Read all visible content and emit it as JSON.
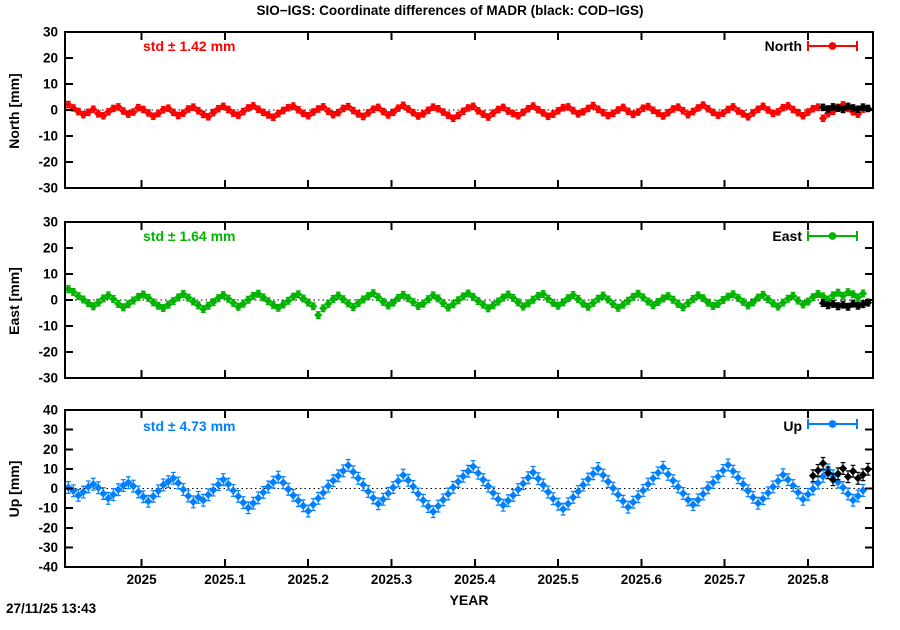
{
  "title": "SIO−IGS: Coordinate differences of MADR (black: COD−IGS)",
  "timestamp": "27/11/25 13:43",
  "chart_data": {
    "type": "scatter",
    "xlabel": "YEAR",
    "x_range": [
      2024.908,
      2025.878
    ],
    "grid": false,
    "zero_line": "dotted",
    "legend_position": "top-right-inside",
    "xticks": [
      {
        "v": 2025.0,
        "label": "2025"
      },
      {
        "v": 2025.1,
        "label": "2025.1"
      },
      {
        "v": 2025.2,
        "label": "2025.2"
      },
      {
        "v": 2025.3,
        "label": "2025.3"
      },
      {
        "v": 2025.4,
        "label": "2025.4"
      },
      {
        "v": 2025.5,
        "label": "2025.5"
      },
      {
        "v": 2025.6,
        "label": "2025.6"
      },
      {
        "v": 2025.7,
        "label": "2025.7"
      },
      {
        "v": 2025.8,
        "label": "2025.8"
      }
    ],
    "panels": [
      {
        "name": "North",
        "ylabel": "North [mm]",
        "ylim": [
          -30,
          30
        ],
        "yticks": [
          {
            "v": -30,
            "label": "-30"
          },
          {
            "v": -20,
            "label": "-20"
          },
          {
            "v": -10,
            "label": "-10"
          },
          {
            "v": 0,
            "label": "0"
          },
          {
            "v": 10,
            "label": "10"
          },
          {
            "v": 20,
            "label": "20"
          },
          {
            "v": 30,
            "label": "30"
          }
        ],
        "std_label": "std ± 1.42 mm",
        "legend": "North",
        "color": "#ff0000",
        "series": [
          {
            "name": "SIO-IGS",
            "color": "#ff0000",
            "x_start": 2024.912,
            "x_step": 0.006,
            "err": 1.2,
            "y": [
              2.1,
              0.8,
              -0.6,
              -1.8,
              -0.9,
              0.3,
              -1.5,
              -2.2,
              -0.7,
              0.6,
              1.2,
              -0.4,
              -1.6,
              -0.8,
              0.9,
              0.2,
              -1.1,
              -2.4,
              -1.3,
              0.1,
              0.7,
              -0.9,
              -2.1,
              -1.2,
              0.4,
              1.1,
              -0.3,
              -1.7,
              -2.6,
              -1.0,
              0.5,
              1.4,
              0.2,
              -1.2,
              -2.0,
              -0.6,
              0.8,
              1.6,
              0.3,
              -0.9,
              -1.9,
              -2.8,
              -1.4,
              -0.2,
              0.9,
              1.5,
              0.1,
              -1.3,
              -2.2,
              -0.8,
              0.4,
              1.2,
              -0.5,
              -1.8,
              -1.0,
              0.6,
              1.3,
              -0.2,
              -1.5,
              -2.5,
              -1.1,
              0.3,
              1.0,
              -0.6,
              -1.9,
              -0.9,
              0.7,
              1.8,
              0.4,
              -1.0,
              -2.3,
              -1.5,
              -0.1,
              1.1,
              0.5,
              -0.8,
              -2.0,
              -3.2,
              -2.1,
              -0.5,
              0.8,
              1.4,
              -0.3,
              -1.6,
              -2.7,
              -1.2,
              0.2,
              1.0,
              -0.4,
              -1.4,
              -2.2,
              -0.9,
              0.5,
              1.5,
              0.1,
              -1.1,
              -2.4,
              -1.6,
              -0.3,
              0.9,
              1.2,
              -0.2,
              -1.5,
              -0.7,
              0.6,
              1.7,
              0.3,
              -1.0,
              -2.1,
              -1.3,
              0.0,
              1.0,
              -0.5,
              -1.7,
              -0.8,
              0.7,
              1.3,
              -0.1,
              -1.2,
              -2.3,
              -1.0,
              0.4,
              1.1,
              -0.3,
              -1.8,
              -0.6,
              0.8,
              1.9,
              0.5,
              -0.9,
              -2.0,
              -1.2,
              0.2,
              1.2,
              -0.4,
              -1.5,
              -2.6,
              -1.1,
              0.3,
              1.4,
              0.0,
              -1.3,
              -0.7,
              0.9,
              1.6,
              0.2,
              -1.0,
              -2.2,
              -0.8,
              0.5,
              1.1,
              -3.2,
              -1.4,
              -0.5,
              1.0,
              2.0,
              0.6,
              -0.7,
              -1.6,
              0.3
            ]
          },
          {
            "name": "COD-IGS",
            "color": "#000000",
            "x_start": 2025.818,
            "x_step": 0.006,
            "err": 1.2,
            "y": [
              1.0,
              0.4,
              1.2,
              0.7,
              0.2,
              1.4,
              0.8,
              0.3,
              1.1,
              0.6
            ]
          }
        ]
      },
      {
        "name": "East",
        "ylabel": "East [mm]",
        "ylim": [
          -30,
          30
        ],
        "yticks": [
          {
            "v": -30,
            "label": "-30"
          },
          {
            "v": -20,
            "label": "-20"
          },
          {
            "v": -10,
            "label": "-10"
          },
          {
            "v": 0,
            "label": "0"
          },
          {
            "v": 10,
            "label": "10"
          },
          {
            "v": 20,
            "label": "20"
          },
          {
            "v": 30,
            "label": "30"
          }
        ],
        "std_label": "std ± 1.64 mm",
        "legend": "East",
        "color": "#00b400",
        "series": [
          {
            "name": "SIO-IGS",
            "color": "#00b400",
            "x_start": 2024.912,
            "x_step": 0.006,
            "err": 1.3,
            "y": [
              4.2,
              3.1,
              1.5,
              0.2,
              -1.2,
              -2.4,
              -1.0,
              0.6,
              1.8,
              0.4,
              -1.5,
              -2.8,
              -1.6,
              -0.2,
              1.2,
              2.1,
              0.8,
              -0.9,
              -2.2,
              -3.1,
              -1.8,
              -0.4,
              1.0,
              2.3,
              0.9,
              -0.6,
              -2.0,
              -3.5,
              -2.2,
              -0.8,
              0.7,
              1.9,
              0.5,
              -1.1,
              -2.6,
              -1.4,
              0.1,
              1.6,
              2.4,
              1.0,
              -0.5,
              -1.9,
              -3.0,
              -1.7,
              -0.3,
              1.3,
              2.2,
              0.6,
              -1.0,
              -2.4,
              -5.8,
              -3.2,
              -1.5,
              0.4,
              1.7,
              0.3,
              -1.3,
              -2.7,
              -1.2,
              0.2,
              1.5,
              2.6,
              1.1,
              -0.7,
              -2.1,
              -1.0,
              0.8,
              2.0,
              0.7,
              -0.8,
              -2.3,
              -1.4,
              0.3,
              1.8,
              0.6,
              -1.2,
              -2.9,
              -1.6,
              -0.1,
              1.4,
              2.5,
              1.2,
              -0.4,
              -1.8,
              -3.2,
              -2.0,
              -0.6,
              0.9,
              2.1,
              0.8,
              -0.9,
              -2.5,
              -1.3,
              0.1,
              1.6,
              2.3,
              0.5,
              -1.1,
              -2.2,
              -0.9,
              0.7,
              1.9,
              0.4,
              -1.4,
              -2.6,
              -1.1,
              0.5,
              1.7,
              0.2,
              -1.6,
              -3.0,
              -1.8,
              -0.3,
              1.2,
              2.4,
              1.0,
              -0.6,
              -2.0,
              -0.8,
              0.6,
              1.5,
              0.1,
              -1.5,
              -2.8,
              -1.2,
              0.4,
              1.8,
              0.7,
              -1.0,
              -2.3,
              -1.5,
              0.0,
              1.3,
              2.2,
              0.8,
              -0.7,
              -2.1,
              -0.9,
              0.9,
              2.0,
              0.3,
              -1.3,
              -2.5,
              -1.0,
              0.5,
              1.6,
              -0.2,
              -1.7,
              -0.6,
              1.1,
              2.3,
              1.4,
              0.2,
              1.8,
              2.8,
              1.6,
              3.0,
              2.2,
              1.0,
              2.5
            ]
          },
          {
            "name": "COD-IGS",
            "color": "#000000",
            "x_start": 2025.818,
            "x_step": 0.006,
            "err": 1.3,
            "y": [
              -1.2,
              -2.0,
              -1.5,
              -2.4,
              -1.8,
              -2.6,
              -1.4,
              -2.2,
              -1.6,
              -1.0
            ]
          }
        ]
      },
      {
        "name": "Up",
        "ylabel": "Up [mm]",
        "ylim": [
          -40,
          40
        ],
        "yticks": [
          {
            "v": -40,
            "label": "-40"
          },
          {
            "v": -30,
            "label": "-30"
          },
          {
            "v": -20,
            "label": "-20"
          },
          {
            "v": -10,
            "label": "-10"
          },
          {
            "v": 0,
            "label": "0"
          },
          {
            "v": 10,
            "label": "10"
          },
          {
            "v": 20,
            "label": "20"
          },
          {
            "v": 30,
            "label": "30"
          },
          {
            "v": 40,
            "label": "40"
          }
        ],
        "std_label": "std ± 4.73 mm",
        "legend": "Up",
        "color": "#0080ff",
        "series": [
          {
            "name": "SIO-IGS",
            "color": "#0080ff",
            "x_start": 2024.912,
            "x_step": 0.006,
            "err": 3.0,
            "y": [
              0.5,
              -1.2,
              -3.5,
              -1.8,
              0.8,
              2.2,
              0.4,
              -2.6,
              -5.0,
              -3.1,
              -0.6,
              1.5,
              3.0,
              1.2,
              -1.8,
              -4.2,
              -6.5,
              -4.0,
              -1.2,
              1.8,
              3.5,
              5.2,
              2.8,
              -0.5,
              -3.8,
              -6.8,
              -4.5,
              -6.0,
              -3.2,
              -0.8,
              2.0,
              4.5,
              2.2,
              -1.0,
              -4.0,
              -7.2,
              -9.8,
              -7.5,
              -4.8,
              -2.0,
              0.8,
              3.2,
              5.8,
              3.0,
              -0.4,
              -3.5,
              -6.2,
              -8.8,
              -11.5,
              -8.2,
              -5.0,
              -2.2,
              1.2,
              4.0,
              6.5,
              9.0,
              11.8,
              8.5,
              5.2,
              2.0,
              -1.5,
              -4.8,
              -7.8,
              -5.5,
              -2.5,
              0.5,
              3.8,
              6.8,
              4.2,
              1.0,
              -2.8,
              -6.0,
              -9.2,
              -11.8,
              -9.0,
              -5.8,
              -2.8,
              0.6,
              3.5,
              6.2,
              8.8,
              11.2,
              7.8,
              4.5,
              1.2,
              -2.2,
              -5.5,
              -8.5,
              -6.2,
              -3.5,
              -0.5,
              2.5,
              5.5,
              8.2,
              5.0,
              1.8,
              -1.8,
              -5.2,
              -8.0,
              -10.5,
              -7.8,
              -4.5,
              -1.5,
              1.8,
              4.8,
              7.5,
              10.2,
              6.8,
              3.5,
              0.2,
              -3.2,
              -6.5,
              -9.5,
              -7.0,
              -4.2,
              -1.0,
              2.2,
              5.2,
              8.0,
              10.8,
              7.2,
              4.0,
              0.8,
              -2.5,
              -5.8,
              -8.2,
              -5.8,
              -2.8,
              0.4,
              3.0,
              6.0,
              9.2,
              12.0,
              8.8,
              5.5,
              2.2,
              -1.2,
              -4.5,
              -7.5,
              -5.2,
              -2.2,
              0.8,
              3.8,
              7.0,
              4.5,
              1.5,
              -2.0,
              -5.5,
              -3.0,
              -0.2,
              2.8,
              6.2,
              9.5,
              6.5,
              3.2,
              0.5,
              -2.8,
              -6.0,
              -3.8,
              -1.0
            ]
          },
          {
            "name": "COD-IGS",
            "color": "#000000",
            "x_start": 2025.806,
            "x_step": 0.006,
            "err": 3.0,
            "y": [
              6.5,
              9.2,
              12.8,
              8.0,
              4.5,
              7.5,
              10.2,
              6.0,
              8.8,
              5.2,
              7.0,
              9.8
            ]
          }
        ]
      }
    ]
  }
}
